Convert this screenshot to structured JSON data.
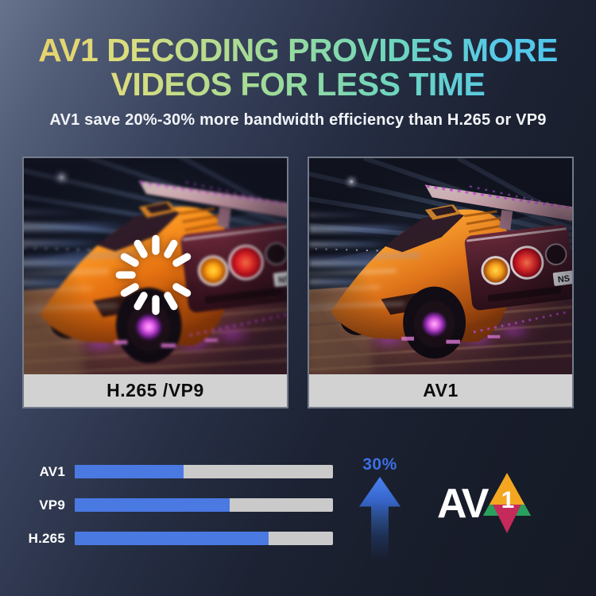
{
  "header": {
    "title_line1": "AV1 DECODING PROVIDES MORE",
    "title_line2": "VIDEOS FOR LESS TIME",
    "subtitle": "AV1 save 20%-30% more bandwidth efficiency than H.265 or VP9"
  },
  "comparison": {
    "left": {
      "label": "H.265 /VP9",
      "state": "buffering"
    },
    "right": {
      "label": "AV1",
      "state": "playing"
    },
    "plate_text": "NS"
  },
  "chart_data": {
    "type": "bar",
    "orientation": "horizontal",
    "categories": [
      "AV1",
      "VP9",
      "H.265"
    ],
    "values": [
      42,
      60,
      75
    ],
    "unit": "percent of track filled (relative bandwidth, estimated from pixels)",
    "bar_color": "#4a79e2",
    "track_color": "#cacaca",
    "legend": false,
    "gridlines": false
  },
  "callout": {
    "value": "30%",
    "direction": "up",
    "color": "#3c70e4"
  },
  "logo": {
    "av_text": "AV",
    "one_text": "1",
    "colors": {
      "orange": "#f4a621",
      "green": "#28a15e",
      "crimson": "#c52a5a"
    }
  },
  "palette": {
    "background_light": "#67728c",
    "background_dark": "#151a26",
    "title_gradient": [
      "#eccf63",
      "#d9dd7f",
      "#9fdb99",
      "#6ed6bd",
      "#52c6ea"
    ],
    "subtitle_color": "#f2f4f8",
    "caption_bg": "#d2d2d2",
    "caption_text": "#0c0c0c"
  }
}
